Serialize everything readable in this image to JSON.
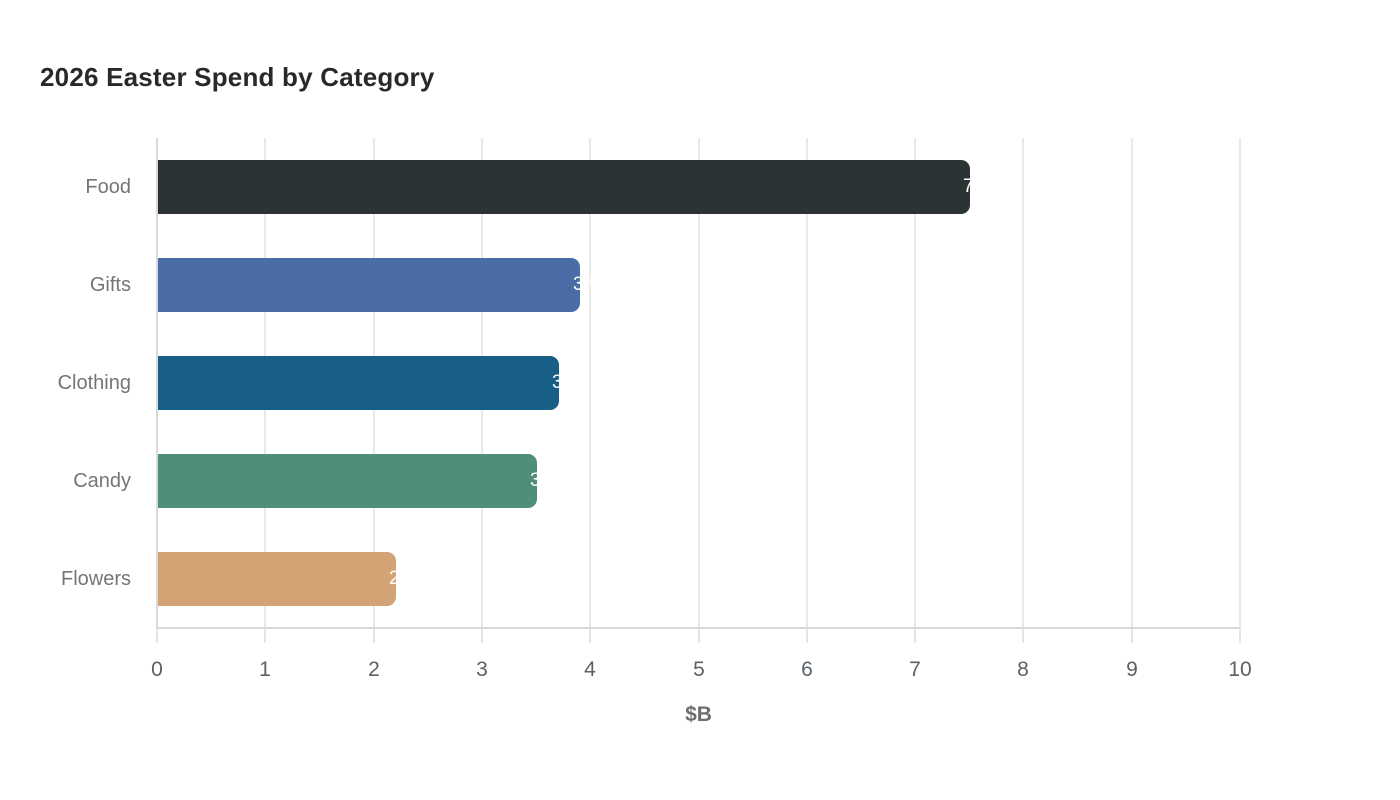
{
  "chart": {
    "title": "2026 Easter Spend by Category",
    "xlabel": "$B"
  },
  "chart_data": {
    "type": "bar",
    "orientation": "horizontal",
    "title": "2026 Easter Spend by Category",
    "xlabel": "$B",
    "ylabel": "",
    "categories": [
      "Food",
      "Gifts",
      "Clothing",
      "Candy",
      "Flowers"
    ],
    "values": [
      7.5,
      3.9,
      3.7,
      3.5,
      2.2
    ],
    "bar_colors": [
      "#2c3335",
      "#4b6da5",
      "#175f87",
      "#508e7c",
      "#d2a375"
    ],
    "xlim": [
      0,
      10
    ],
    "xticks": [
      0,
      1,
      2,
      3,
      4,
      5,
      6,
      7,
      8,
      9,
      10
    ],
    "grid": true,
    "legend": false,
    "value_label_style": "white text clipped at bar end"
  },
  "colors": {
    "background": "#ffffff",
    "gridline": "#e9e9e9",
    "axis_line": "#d9d9d9",
    "title_text": "#292929",
    "category_text": "#757575",
    "tick_text": "#5a6268",
    "axis_title_text": "#6e6e6e",
    "value_label_text": "#ffffff"
  }
}
